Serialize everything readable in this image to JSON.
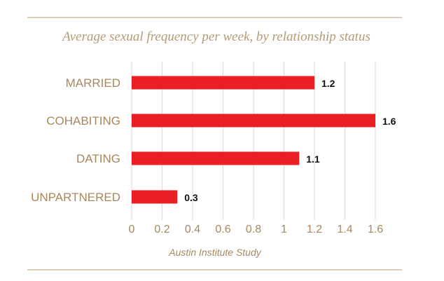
{
  "chart_data": {
    "type": "bar",
    "orientation": "horizontal",
    "title": "Average sexual frequency per week, by relationship status",
    "source": "Austin Institute Study",
    "categories": [
      "MARRIED",
      "COHABITING",
      "DATING",
      "UNPARTNERED"
    ],
    "values": [
      1.2,
      1.6,
      1.1,
      0.3
    ],
    "data_labels": [
      "1.2",
      "1.6",
      "1.1",
      "0.3"
    ],
    "xlim": [
      0,
      1.6
    ],
    "xticks": [
      0,
      0.2,
      0.4,
      0.6,
      0.8,
      1,
      1.2,
      1.4,
      1.6
    ],
    "xtick_labels": [
      "0",
      "0.2",
      "0.4",
      "0.6",
      "0.8",
      "1",
      "1.2",
      "1.4",
      "1.6"
    ],
    "grid": "vertical",
    "legend": "none",
    "colors": {
      "bar": "#ea1f25",
      "grid": "#d9d9d9",
      "category_text": "#a8875e",
      "tick_text": "#a8875e",
      "value_text": "#111111",
      "title_text": "#b59a74",
      "rule": "#dbcdb9"
    }
  }
}
